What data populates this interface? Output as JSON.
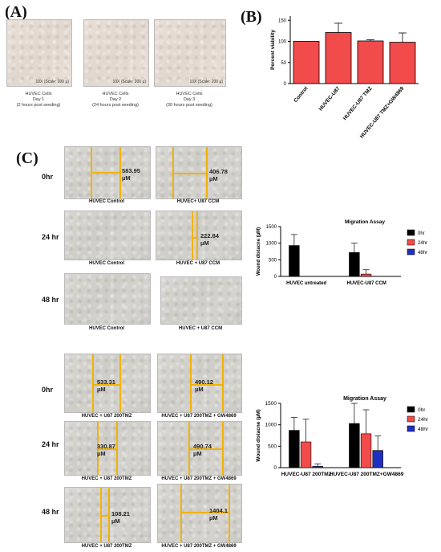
{
  "panel_a": {
    "label": "(A)",
    "images": [
      {
        "scale": "10X (Scale: 200 µ)",
        "cap1": "HUVEC Cells",
        "cap2": "Day 1",
        "cap3": "(2 hours post seeding)"
      },
      {
        "scale": "10X (Scale: 200 µ)",
        "cap1": "HUVEC Cells",
        "cap2": "Day 2",
        "cap3": "(24 hours post seeding)"
      },
      {
        "scale": "10X (Scale: 200 µ)",
        "cap1": "HUVEC Cells",
        "cap2": "Day 3",
        "cap3": "(30 hours post seeding)"
      }
    ]
  },
  "panel_b": {
    "label": "(B)"
  },
  "panel_c": {
    "label": "(C)",
    "top_rows": [
      "0hr",
      "24 hr",
      "48 hr"
    ],
    "top_captions": {
      "r0_left": "HUVEC Control",
      "r0_right": "HUVEC+ U87 CCM",
      "r1_left": "HUVEC Control",
      "r1_right": "HUVEC + U87 CCM",
      "r2_left": "HUVEC Control",
      "r2_right": "HUVEC + U87 CCM"
    },
    "top_wounds": {
      "r0_left_value": "583.95",
      "r0_left_unit": "µM",
      "r0_right_value": "406.78",
      "r0_right_unit": "µM",
      "r1_right_value": "222.84",
      "r1_right_unit": "µM"
    },
    "bottom_rows": [
      "0hr",
      "24 hr",
      "48 hr"
    ],
    "bottom_captions": {
      "r0_left": "HUVEC + U87 200TMZ",
      "r0_right": "HUVEC + U87 200TMZ + GW4869",
      "r1_left": "HUVEC + U87 200TMZ",
      "r1_right": "HUVEC + U87 200TMZ + GW4869",
      "r2_left": "HUVEC + U87 200TMZ",
      "r2_right": "HUVEC + U87 200TMZ + GW4869"
    },
    "bottom_wounds": {
      "r0_left_value": "533.31",
      "r0_left_unit": "µM",
      "r0_right_value": "490.12",
      "r0_right_unit": "µM",
      "r1_left_value": "330.87",
      "r1_left_unit": "µM",
      "r1_right_value": "490.74",
      "r1_right_unit": "µM",
      "r2_left_value": "108.21",
      "r2_left_unit": "µM",
      "r2_right_value": "1404.1",
      "r2_right_unit": "µM"
    }
  },
  "colors": {
    "red": "#f24b4b",
    "black": "#000000",
    "blue": "#1f2fbf",
    "yellow": "#f2b300"
  },
  "chart_data": [
    {
      "type": "bar",
      "ylabel": "Percent viability",
      "categories": [
        "Control",
        "HUVEC-U87",
        "HUVEC-U87 TMZ",
        "HUVEC-U87 TMZ+GW4869"
      ],
      "values": [
        100,
        121,
        101,
        98
      ],
      "errors": [
        0,
        22,
        3,
        22
      ],
      "yticks": [
        0,
        50,
        100,
        150
      ],
      "ylim": [
        0,
        160
      ],
      "grid": false
    },
    {
      "type": "bar",
      "title": "Migration Assay",
      "ylabel": "Wound distacne (µM)",
      "categories": [
        "HUVEC untreated",
        "HUVEC-U87 CCM"
      ],
      "series": [
        {
          "name": "0hr",
          "values": [
            930,
            720
          ],
          "errors": [
            330,
            280
          ]
        },
        {
          "name": "24hr",
          "values": [
            0,
            70
          ],
          "errors": [
            0,
            130
          ]
        },
        {
          "name": "48hr",
          "values": [
            0,
            0
          ],
          "errors": [
            0,
            0
          ]
        }
      ],
      "yticks": [
        0,
        500,
        1000,
        1500
      ],
      "ylim": [
        0,
        1500
      ],
      "legend": "right",
      "grid": false
    },
    {
      "type": "bar",
      "title": "Migration Assay",
      "ylabel": "Wound distacne (µM)",
      "categories": [
        "HUVEC-U87 200TMZ",
        "HUVEC-U87 200TMZ+GW4869"
      ],
      "series": [
        {
          "name": "0hr",
          "values": [
            870,
            1030
          ],
          "errors": [
            300,
            470
          ]
        },
        {
          "name": "24hr",
          "values": [
            600,
            790
          ],
          "errors": [
            530,
            560
          ]
        },
        {
          "name": "48hr",
          "values": [
            30,
            400
          ],
          "errors": [
            60,
            340
          ]
        }
      ],
      "yticks": [
        0,
        500,
        1000,
        1500
      ],
      "ylim": [
        0,
        1500
      ],
      "legend": "right",
      "grid": false
    }
  ]
}
